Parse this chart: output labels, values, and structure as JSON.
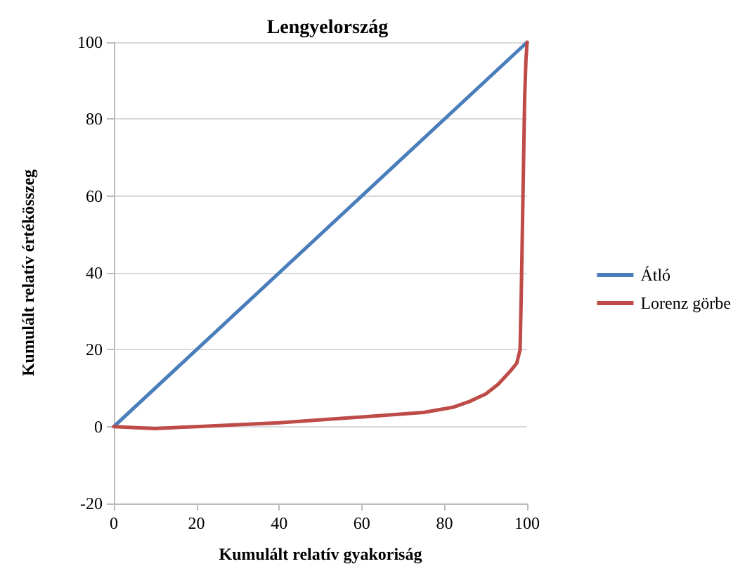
{
  "chart_data": {
    "type": "line",
    "title": "Lengyelország",
    "xlabel": "Kumulált relatív gyakoriság",
    "ylabel": "Kumulált relatív értékösszeg",
    "xlim": [
      0,
      100
    ],
    "xticks": [
      0,
      20,
      40,
      60,
      80,
      100
    ],
    "ylim": [
      -20,
      100
    ],
    "yticks": [
      -20,
      0,
      20,
      40,
      60,
      80,
      100
    ],
    "grid": "y",
    "legend": "right",
    "marker": "none",
    "line_style": "solid",
    "series": [
      {
        "name": "Átló",
        "color": "#4a7ebb",
        "x": [
          0,
          100
        ],
        "values": [
          0,
          100
        ]
      },
      {
        "name": "Lorenz görbe",
        "color": "#be4b48",
        "x": [
          0,
          10,
          20,
          40,
          60,
          75,
          82,
          86,
          90,
          93,
          96,
          97.5,
          98.3,
          98.6,
          99,
          99.4,
          99.7,
          100
        ],
        "values": [
          0,
          -0.5,
          0,
          1,
          2.5,
          3.7,
          5,
          6.5,
          8.5,
          11,
          14.5,
          16.5,
          20,
          35,
          60,
          85,
          95,
          100
        ]
      }
    ]
  }
}
